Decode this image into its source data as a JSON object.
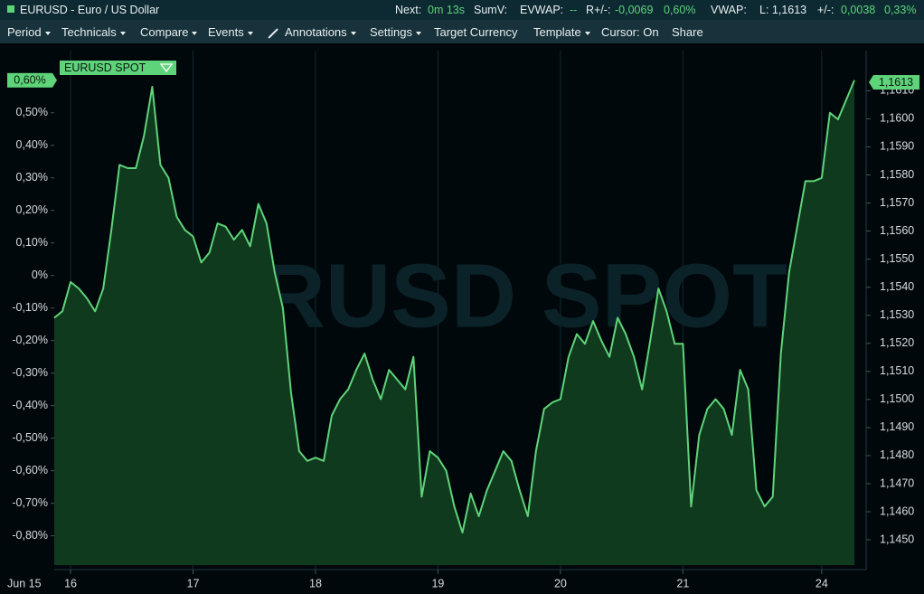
{
  "header": {
    "symbol": "EURUSD - Euro / US Dollar",
    "stats": [
      "Next:",
      "0m 13s",
      "SumV:",
      "EVWAP:",
      "--",
      "R+/-:",
      "-0,0069",
      "0,60%",
      "VWAP:",
      "L: 1,1613",
      "+/-:",
      "0,0038",
      "0,33%"
    ]
  },
  "toolbar": {
    "items": [
      "Period",
      "Technicals",
      "Compare",
      "Events",
      "Annotations",
      "Settings",
      "Target Currency",
      "Template",
      "Cursor: On",
      "Share"
    ]
  },
  "chart_data": {
    "type": "line",
    "watermark": "EURUSD SPOT",
    "x_start_label": "Jun 15",
    "categories": [
      null,
      null,
      "16",
      null,
      null,
      null,
      null,
      null,
      null,
      null,
      null,
      null,
      null,
      null,
      null,
      null,
      null,
      "17",
      null,
      null,
      null,
      null,
      null,
      null,
      null,
      null,
      null,
      null,
      null,
      null,
      null,
      null,
      "18",
      null,
      null,
      null,
      null,
      null,
      null,
      null,
      null,
      null,
      null,
      null,
      null,
      null,
      null,
      "19",
      null,
      null,
      null,
      null,
      null,
      null,
      null,
      null,
      null,
      null,
      null,
      null,
      null,
      null,
      "20",
      null,
      null,
      null,
      null,
      null,
      null,
      null,
      null,
      null,
      null,
      null,
      null,
      null,
      null,
      "21",
      null,
      null,
      null,
      null,
      null,
      null,
      null,
      null,
      null,
      null,
      null,
      null,
      null,
      null,
      null,
      null,
      "24",
      null,
      null,
      null,
      null
    ],
    "series": [
      {
        "name": "EURUSD SPOT",
        "color": "#5fd37a",
        "area_color": "#103a1d",
        "values": [
          -0.13,
          -0.11,
          -0.02,
          -0.04,
          -0.07,
          -0.11,
          -0.04,
          0.14,
          0.34,
          0.33,
          0.33,
          0.43,
          0.58,
          0.34,
          0.3,
          0.18,
          0.14,
          0.12,
          0.04,
          0.07,
          0.16,
          0.15,
          0.11,
          0.14,
          0.09,
          0.22,
          0.16,
          0.01,
          -0.1,
          -0.36,
          -0.54,
          -0.57,
          -0.56,
          -0.57,
          -0.43,
          -0.38,
          -0.35,
          -0.29,
          -0.24,
          -0.32,
          -0.38,
          -0.29,
          -0.32,
          -0.35,
          -0.25,
          -0.68,
          -0.54,
          -0.56,
          -0.6,
          -0.71,
          -0.79,
          -0.67,
          -0.74,
          -0.66,
          -0.6,
          -0.54,
          -0.57,
          -0.66,
          -0.74,
          -0.54,
          -0.41,
          -0.39,
          -0.38,
          -0.25,
          -0.18,
          -0.21,
          -0.14,
          -0.2,
          -0.25,
          -0.13,
          -0.18,
          -0.25,
          -0.35,
          -0.2,
          -0.04,
          -0.11,
          -0.21,
          -0.21,
          -0.71,
          -0.49,
          -0.41,
          -0.38,
          -0.41,
          -0.49,
          -0.29,
          -0.35,
          -0.66,
          -0.71,
          -0.68,
          -0.24,
          0.01,
          0.15,
          0.29,
          0.29,
          0.3,
          0.5,
          0.48,
          0.54,
          0.6
        ]
      }
    ],
    "current_value": {
      "value": 0.6,
      "label": "0,60%"
    },
    "last_price": {
      "value": 1.1613,
      "label": "1,1613"
    },
    "ylim": [
      -0.89,
      0.68
    ],
    "yticks": [
      {
        "value": 0.5,
        "label": "0,50%"
      },
      {
        "value": 0.4,
        "label": "0,40%"
      },
      {
        "value": 0.3,
        "label": "0,30%"
      },
      {
        "value": 0.2,
        "label": "0,20%"
      },
      {
        "value": 0.1,
        "label": "0,10%"
      },
      {
        "value": 0,
        "label": "0%"
      },
      {
        "value": -0.1,
        "label": "-0,10%"
      },
      {
        "value": -0.2,
        "label": "-0,20%"
      },
      {
        "value": -0.3,
        "label": "-0,30%"
      },
      {
        "value": -0.4,
        "label": "-0,40%"
      },
      {
        "value": -0.5,
        "label": "-0,50%"
      },
      {
        "value": -0.6,
        "label": "-0,60%"
      },
      {
        "value": -0.7,
        "label": "-0,70%"
      },
      {
        "value": -0.8,
        "label": "-0,80%"
      }
    ],
    "y2lim": [
      1.1441,
      1.1623
    ],
    "y2ticks": [
      {
        "value": 1.161,
        "label": "1,1610"
      },
      {
        "value": 1.16,
        "label": "1,1600"
      },
      {
        "value": 1.159,
        "label": "1,1590"
      },
      {
        "value": 1.158,
        "label": "1,1580"
      },
      {
        "value": 1.157,
        "label": "1,1570"
      },
      {
        "value": 1.156,
        "label": "1,1560"
      },
      {
        "value": 1.155,
        "label": "1,1550"
      },
      {
        "value": 1.154,
        "label": "1,1540"
      },
      {
        "value": 1.153,
        "label": "1,1530"
      },
      {
        "value": 1.152,
        "label": "1,1520"
      },
      {
        "value": 1.151,
        "label": "1,1510"
      },
      {
        "value": 1.15,
        "label": "1,1500"
      },
      {
        "value": 1.149,
        "label": "1,1490"
      },
      {
        "value": 1.148,
        "label": "1,1480"
      },
      {
        "value": 1.147,
        "label": "1,1470"
      },
      {
        "value": 1.146,
        "label": "1,1460"
      },
      {
        "value": 1.145,
        "label": "1,1450"
      }
    ],
    "grid": true
  }
}
